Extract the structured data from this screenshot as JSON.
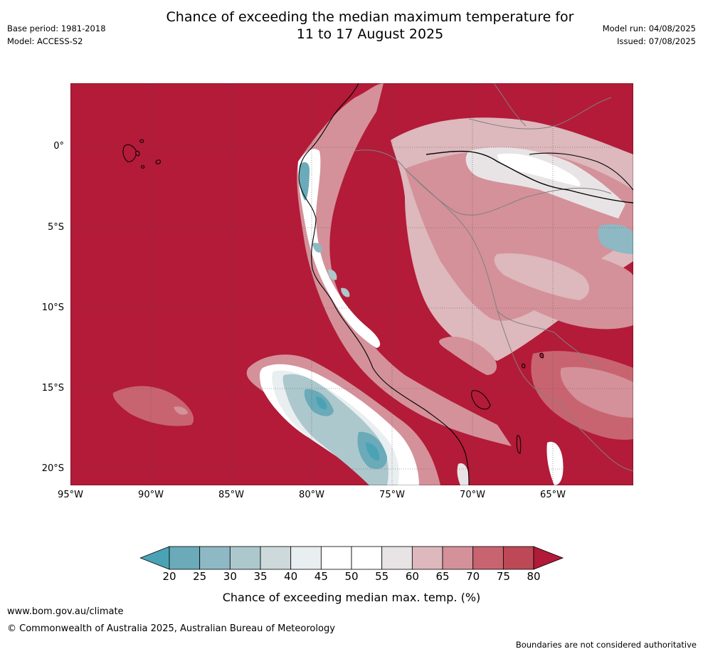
{
  "header": {
    "title_line1": "Chance of exceeding the median maximum temperature for",
    "title_line2": "11 to 17 August 2025",
    "base_period": "Base period: 1981-2018",
    "model": "Model: ACCESS-S2",
    "model_run": "Model run: 04/08/2025",
    "issued": "Issued: 07/08/2025"
  },
  "map": {
    "lat_labels": [
      "0°",
      "5°S",
      "10°S",
      "15°S",
      "20°S"
    ],
    "lon_labels": [
      "95°W",
      "90°W",
      "85°W",
      "80°W",
      "75°W",
      "70°W",
      "65°W"
    ],
    "ocean_color": "#b31b38",
    "coast_color": "#000000",
    "border_color": "#808080"
  },
  "colorbar": {
    "ticks": [
      "20",
      "25",
      "30",
      "35",
      "40",
      "45",
      "50",
      "55",
      "60",
      "65",
      "70",
      "75",
      "80"
    ],
    "label": "Chance of exceeding median max. temp. (%)",
    "colors": [
      "#4aa3b5",
      "#6aaab9",
      "#8db8c4",
      "#acc8cc",
      "#ced9db",
      "#e9eef0",
      "#ffffff",
      "#ffffff",
      "#e8e4e5",
      "#ddb8bd",
      "#d4919a",
      "#c86470",
      "#be4956",
      "#b11a38"
    ]
  },
  "footer": {
    "website": "www.bom.gov.au/climate",
    "copyright": "© Commonwealth of Australia 2025, Australian Bureau of Meteorology",
    "disclaimer": "Boundaries are not considered authoritative"
  }
}
